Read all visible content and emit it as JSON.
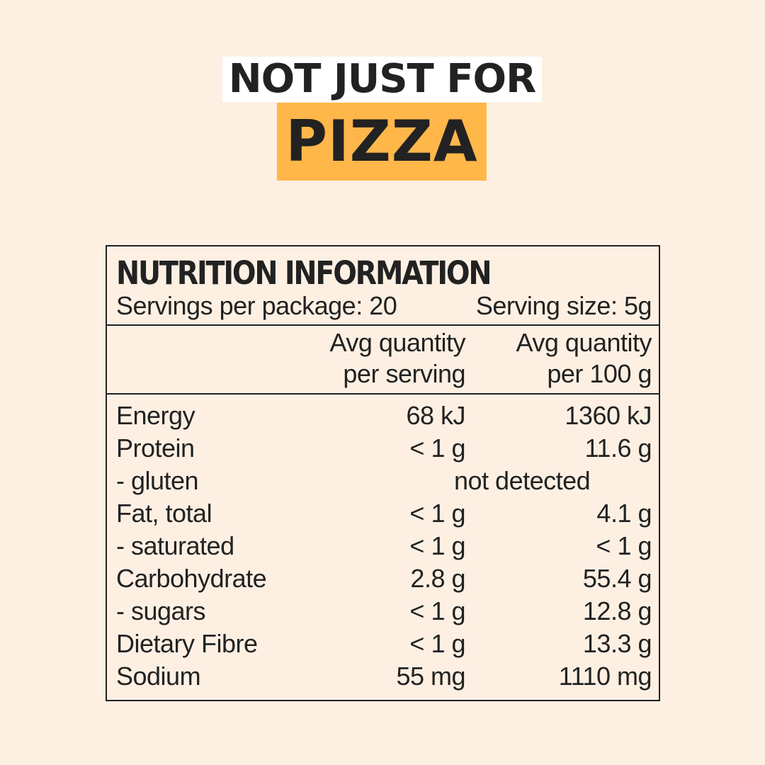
{
  "headline": {
    "line1": "NOT JUST FOR",
    "line2": "PIZZA"
  },
  "colors": {
    "background": "#fdf0e3",
    "highlight": "#ffb74a",
    "text": "#222222"
  },
  "nutrition": {
    "title": "NUTRITION INFORMATION",
    "servings_per_package": "Servings per package: 20",
    "serving_size": "Serving size: 5g",
    "col1_line1": "Avg quantity",
    "col1_line2": "per serving",
    "col2_line1": "Avg quantity",
    "col2_line2": "per 100 g",
    "rows": [
      {
        "label": "Energy",
        "per_serving": "68 kJ",
        "per_100g": "1360 kJ"
      },
      {
        "label": "Protein",
        "per_serving": "< 1 g",
        "per_100g": "11.6 g"
      },
      {
        "label": "- gluten",
        "merged": "not detected"
      },
      {
        "label": "Fat, total",
        "per_serving": "< 1 g",
        "per_100g": "4.1 g"
      },
      {
        "label": "- saturated",
        "per_serving": "< 1 g",
        "per_100g": "< 1 g"
      },
      {
        "label": "Carbohydrate",
        "per_serving": "2.8 g",
        "per_100g": "55.4 g"
      },
      {
        "label": "- sugars",
        "per_serving": "< 1 g",
        "per_100g": "12.8 g"
      },
      {
        "label": "Dietary Fibre",
        "per_serving": "< 1 g",
        "per_100g": "13.3 g"
      },
      {
        "label": "Sodium",
        "per_serving": "55 mg",
        "per_100g": "1110 mg"
      }
    ]
  }
}
